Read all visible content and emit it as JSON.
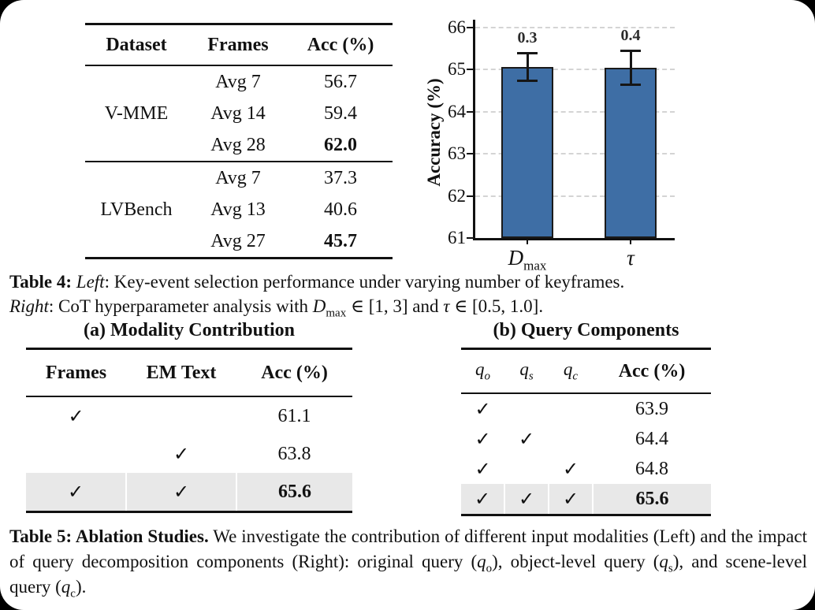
{
  "table4": {
    "left_table": {
      "headers": [
        "Dataset",
        "Frames",
        "Acc (%)"
      ],
      "groups": [
        {
          "dataset": "V-MME",
          "rows": [
            [
              "Avg 7",
              "56.7"
            ],
            [
              "Avg 14",
              "59.4"
            ],
            [
              "Avg 28",
              "62.0"
            ]
          ]
        },
        {
          "dataset": "LVBench",
          "rows": [
            [
              "Avg 7",
              "37.3"
            ],
            [
              "Avg 13",
              "40.6"
            ],
            [
              "Avg 27",
              "45.7"
            ]
          ]
        }
      ]
    },
    "caption": {
      "label": "Table 4: ",
      "left_word": "Left",
      "part1": ": Key-event selection performance under varying number of keyframes.",
      "right_word": "Right",
      "part2": ": CoT hyperparameter analysis with ",
      "math1_base": "D",
      "math1_sub": "max",
      "part3": " ∈ [1, 3] and ",
      "math2": "τ",
      "part4": " ∈ [0.5, 1.0]."
    }
  },
  "chart_data": {
    "type": "bar",
    "categories": [
      {
        "base": "D",
        "sub": "max"
      },
      {
        "base": "τ",
        "sub": ""
      }
    ],
    "values": [
      65.07,
      65.05
    ],
    "errors": [
      0.33,
      0.4
    ],
    "error_labels": [
      "0.3",
      "0.4"
    ],
    "ylabel": "Accuracy (%)",
    "ylim": [
      61,
      66
    ],
    "yticks": [
      61,
      62,
      63,
      64,
      65,
      66
    ],
    "grid": "dashed horizontal",
    "legend": "none",
    "bar_color": "#3e6ea5",
    "bar_edge_color": "#1a1a1a",
    "grid_color": "#d4d4d4"
  },
  "table5": {
    "sub_a": {
      "caption": "(a) Modality Contribution",
      "headers": [
        "Frames",
        "EM Text",
        "Acc (%)"
      ],
      "rows": [
        [
          "✓",
          "",
          "61.1"
        ],
        [
          "",
          "✓",
          "63.8"
        ],
        [
          "✓",
          "✓",
          "65.6"
        ]
      ]
    },
    "sub_b": {
      "caption": "(b) Query Components",
      "headers_math": [
        {
          "base": "q",
          "sub": "o"
        },
        {
          "base": "q",
          "sub": "s"
        },
        {
          "base": "q",
          "sub": "c"
        }
      ],
      "header_acc": "Acc (%)",
      "rows": [
        [
          "✓",
          "",
          "",
          "63.9"
        ],
        [
          "✓",
          "✓",
          "",
          "64.4"
        ],
        [
          "✓",
          "",
          "✓",
          "64.8"
        ],
        [
          "✓",
          "✓",
          "✓",
          "65.6"
        ]
      ]
    },
    "highlight_color": "#e8e8e8",
    "caption": {
      "label": "Table 5: Ablation Studies.",
      "part1": " We investigate the contribution of different input modalities (Left) and the impact of query decomposition components (Right): original query (",
      "q1": "q",
      "q1_sub": "o",
      "part2": "), object-level query (",
      "q2": "q",
      "q2_sub": "s",
      "part3": "), and scene-level query (",
      "q3": "q",
      "q3_sub": "c",
      "part4": ")."
    }
  }
}
